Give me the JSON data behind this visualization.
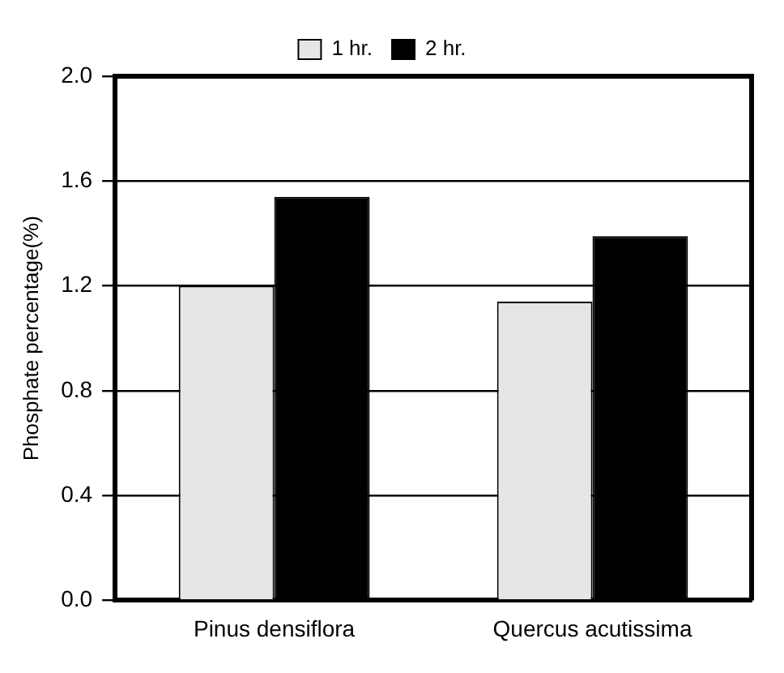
{
  "chart_data": {
    "type": "bar",
    "ylabel": "Phosphate percentage(%)",
    "categories": [
      "Pinus densiflora",
      "Quercus acutissima"
    ],
    "series": [
      {
        "name": "1 hr.",
        "color": "#e6e6e6",
        "values": [
          1.2,
          1.14
        ]
      },
      {
        "name": "2 hr.",
        "color": "#000000",
        "values": [
          1.54,
          1.39
        ]
      }
    ],
    "ylim": [
      0,
      2.0
    ],
    "yticks": [
      {
        "value": 0,
        "label": "0.0"
      },
      {
        "value": 0.4,
        "label": "0.4"
      },
      {
        "value": 0.8,
        "label": "0.8"
      },
      {
        "value": 1.2,
        "label": "1.2"
      },
      {
        "value": 1.6,
        "label": "1.6"
      },
      {
        "value": 2.0,
        "label": "2.0"
      }
    ],
    "grid": "y",
    "legend": "top"
  }
}
